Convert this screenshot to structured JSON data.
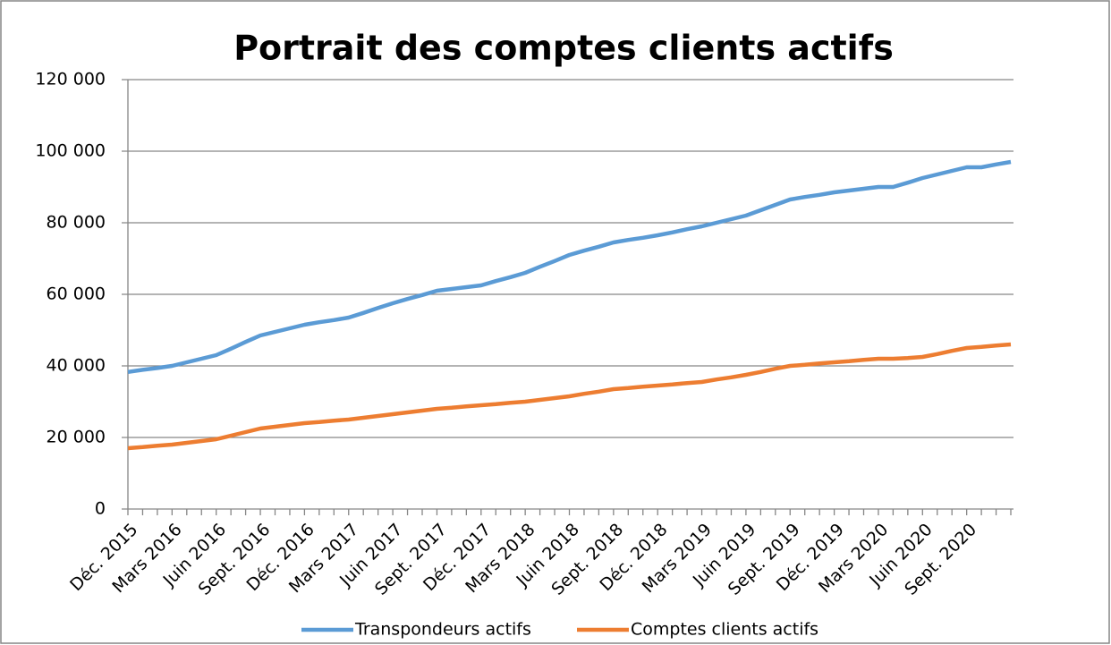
{
  "chart_data": {
    "type": "line",
    "title": "Portrait des comptes clients actifs",
    "categories": [
      "Déc. 2015",
      null,
      null,
      "Mars 2016",
      null,
      null,
      "Juin 2016",
      null,
      null,
      "Sept. 2016",
      null,
      null,
      "Déc. 2016",
      null,
      null,
      "Mars 2017",
      null,
      null,
      "Juin 2017",
      null,
      null,
      "Sept. 2017",
      null,
      null,
      "Déc. 2017",
      null,
      null,
      "Mars 2018",
      null,
      null,
      "Juin 2018",
      null,
      null,
      "Sept. 2018",
      null,
      null,
      "Déc. 2018",
      null,
      null,
      "Mars 2019",
      null,
      null,
      "Juin 2019",
      null,
      null,
      "Sept. 2019",
      null,
      null,
      "Déc. 2019",
      null,
      null,
      "Mars 2020",
      null,
      null,
      "Juin 2020",
      null,
      null,
      "Sept. 2020",
      null,
      null,
      null
    ],
    "series": [
      {
        "name": "Transpondeurs actifs",
        "color": "#5b9bd5",
        "values": [
          38300,
          38900,
          39400,
          40000,
          41000,
          42000,
          43000,
          44800,
          46700,
          48500,
          49500,
          50500,
          51500,
          52200,
          52800,
          53500,
          54800,
          56200,
          57500,
          58700,
          59800,
          61000,
          61500,
          62000,
          62500,
          63700,
          64800,
          66000,
          67700,
          69300,
          71000,
          72200,
          73300,
          74500,
          75200,
          75800,
          76500,
          77300,
          78200,
          79000,
          80000,
          81000,
          82000,
          83500,
          85000,
          86500,
          87200,
          87800,
          88500,
          89000,
          89500,
          90000,
          90000,
          91200,
          92500,
          93500,
          94500,
          95500,
          95500,
          96300,
          97000
        ]
      },
      {
        "name": "Comptes clients actifs",
        "color": "#ed7d31",
        "values": [
          17000,
          17300,
          17700,
          18000,
          18500,
          19000,
          19500,
          20500,
          21500,
          22500,
          23000,
          23500,
          24000,
          24300,
          24700,
          25000,
          25500,
          26000,
          26500,
          27000,
          27500,
          28000,
          28300,
          28700,
          29000,
          29300,
          29700,
          30000,
          30500,
          31000,
          31500,
          32200,
          32800,
          33500,
          33800,
          34200,
          34500,
          34800,
          35200,
          35500,
          36200,
          36800,
          37500,
          38300,
          39200,
          40000,
          40300,
          40700,
          41000,
          41300,
          41700,
          42000,
          42000,
          42200,
          42500,
          43300,
          44200,
          45000,
          45300,
          45700,
          46000
        ]
      }
    ],
    "ylim": [
      0,
      120000
    ],
    "yticks": [
      0,
      {
        "value": 20000,
        "label": "20 000"
      },
      {
        "value": 40000,
        "label": "40 000"
      },
      {
        "value": 60000,
        "label": "60 000"
      },
      {
        "value": 80000,
        "label": "80 000"
      },
      {
        "value": 100000,
        "label": "100 000"
      },
      {
        "value": 120000,
        "label": "120 000"
      }
    ],
    "grid": true,
    "legend": "bottom"
  }
}
